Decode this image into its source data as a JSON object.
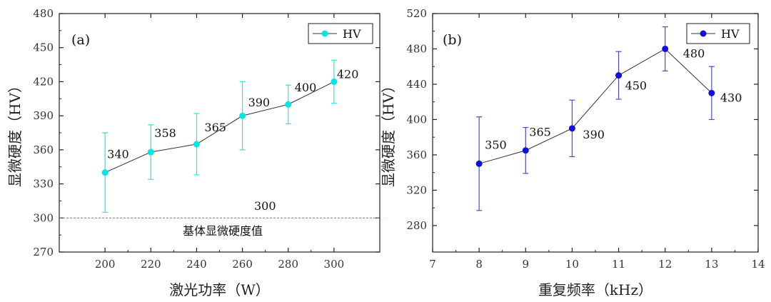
{
  "chart_data": [
    {
      "type": "line",
      "panel_label": "(a)",
      "xlabel": "激光功率（W）",
      "ylabel": "显微硬度（HV）",
      "x": [
        200,
        220,
        240,
        260,
        280,
        300
      ],
      "xlim": [
        180,
        320
      ],
      "xticks": [
        200,
        220,
        240,
        260,
        280,
        300
      ],
      "ylim": [
        270,
        480
      ],
      "yticks": [
        270,
        300,
        330,
        360,
        390,
        420,
        450,
        480
      ],
      "series": [
        {
          "name": "HV",
          "values": [
            340,
            358,
            365,
            390,
            400,
            420
          ],
          "error": [
            35,
            24,
            27,
            30,
            17,
            19
          ],
          "labels": [
            "340",
            "358",
            "365",
            "390",
            "400",
            "420"
          ],
          "marker_color": "#00e5e5",
          "error_color": "#33e0e0",
          "line_color": "#333333"
        }
      ],
      "reference_line": {
        "value": 300,
        "value_label": "300",
        "text": "基体显微硬度值",
        "color": "#e05050"
      },
      "legend": {
        "position": "top-right",
        "entries": [
          "HV"
        ]
      }
    },
    {
      "type": "line",
      "panel_label": "(b)",
      "xlabel": "重复频率（kHz）",
      "ylabel": "显微硬度（HV）",
      "x": [
        8,
        9,
        10,
        11,
        12,
        13
      ],
      "xlim": [
        7,
        14
      ],
      "xticks": [
        7,
        8,
        9,
        10,
        11,
        12,
        13,
        14
      ],
      "ylim": [
        250,
        520
      ],
      "yticks": [
        280,
        320,
        360,
        400,
        440,
        480,
        520
      ],
      "series": [
        {
          "name": "HV",
          "values": [
            350,
            365,
            390,
            450,
            480,
            430
          ],
          "error": [
            53,
            26,
            32,
            27,
            25,
            30
          ],
          "labels": [
            "350",
            "365",
            "390",
            "450",
            "480",
            "430"
          ],
          "marker_color": "#1010dd",
          "error_color": "#4a4ad8",
          "line_color": "#333333"
        }
      ],
      "legend": {
        "position": "top-right",
        "entries": [
          "HV"
        ]
      }
    }
  ]
}
